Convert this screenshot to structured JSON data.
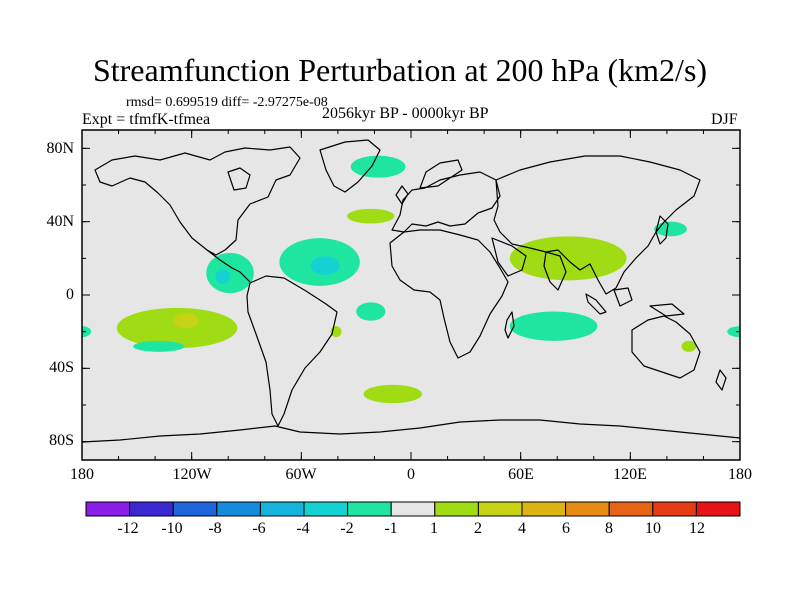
{
  "title": "Streamfunction Perturbation at 200 hPa (km2/s)",
  "stats": {
    "rmsd_text": "rmsd= 0.699519 diff= -2.97275e-08"
  },
  "experiment": "Expt = tfmfK-tfmea",
  "period": "2056kyr BP - 0000kyr BP",
  "season": "DJF",
  "axes": {
    "lat_labels": [
      "80N",
      "40N",
      "0",
      "40S",
      "80S"
    ],
    "lon_labels": [
      "180",
      "120W",
      "60W",
      "0",
      "60E",
      "120E",
      "180"
    ]
  },
  "colorbar": {
    "labels": [
      "-12",
      "-10",
      "-8",
      "-6",
      "-4",
      "-2",
      "-1",
      "1",
      "2",
      "4",
      "6",
      "8",
      "10",
      "12"
    ],
    "colors": [
      "#8a1ee6",
      "#3c28d2",
      "#1e64dc",
      "#148cdc",
      "#14b4dc",
      "#14d2d2",
      "#1ee6a0",
      "#e6e6e6",
      "#a0dc14",
      "#c8d214",
      "#dcb414",
      "#e68c14",
      "#e66414",
      "#e63c14",
      "#e61414"
    ]
  },
  "map_data": {
    "type": "contour_fill_map",
    "field": "streamfunction perturbation",
    "units": "km2/s",
    "level_hPa": 200,
    "lat_range": [
      -90,
      90
    ],
    "lon_range": [
      -180,
      180
    ],
    "background_color": "#e6e6e6",
    "land_outline_color": "#000000",
    "regions": [
      {
        "name": "north-atlantic-high",
        "lon": -18,
        "lat": 70,
        "rx": 15,
        "ry": 6,
        "color": "#1ee6a0"
      },
      {
        "name": "caribbean-low",
        "lon": -50,
        "lat": 18,
        "rx": 22,
        "ry": 13,
        "color": "#1ee6a0"
      },
      {
        "name": "caribbean-low-core",
        "lon": -47,
        "lat": 16,
        "rx": 8,
        "ry": 5,
        "color": "#14d2d2"
      },
      {
        "name": "mexico-low",
        "lon": -99,
        "lat": 12,
        "rx": 13,
        "ry": 11,
        "color": "#1ee6a0"
      },
      {
        "name": "mexico-low-core",
        "lon": -103,
        "lat": 10,
        "rx": 4,
        "ry": 4,
        "color": "#14d2d2"
      },
      {
        "name": "west-africa-high",
        "lon": -22,
        "lat": 43,
        "rx": 13,
        "ry": 4,
        "color": "#a0dc14"
      },
      {
        "name": "asia-high",
        "lon": 86,
        "lat": 20,
        "rx": 32,
        "ry": 12,
        "color": "#a0dc14"
      },
      {
        "name": "japan-low",
        "lon": 142,
        "lat": 36,
        "rx": 9,
        "ry": 4,
        "color": "#1ee6a0"
      },
      {
        "name": "east-pacific-high",
        "lon": -128,
        "lat": -18,
        "rx": 33,
        "ry": 11,
        "color": "#a0dc14"
      },
      {
        "name": "east-pacific-high-core",
        "lon": -123,
        "lat": -14,
        "rx": 7,
        "ry": 4,
        "color": "#c8d214"
      },
      {
        "name": "south-pacific-low",
        "lon": -138,
        "lat": -28,
        "rx": 14,
        "ry": 3,
        "color": "#1ee6a0"
      },
      {
        "name": "south-america-high",
        "lon": -41,
        "lat": -20,
        "rx": 3,
        "ry": 3,
        "color": "#a0dc14"
      },
      {
        "name": "south-atlantic-low",
        "lon": -22,
        "lat": -9,
        "rx": 8,
        "ry": 5,
        "color": "#1ee6a0"
      },
      {
        "name": "southern-ocean-high",
        "lon": -10,
        "lat": -54,
        "rx": 16,
        "ry": 5,
        "color": "#a0dc14"
      },
      {
        "name": "indian-ocean-low",
        "lon": 78,
        "lat": -17,
        "rx": 24,
        "ry": 8,
        "color": "#1ee6a0"
      },
      {
        "name": "australia-high",
        "lon": 152,
        "lat": -28,
        "rx": 4,
        "ry": 3,
        "color": "#a0dc14"
      },
      {
        "name": "dateline-low-east",
        "lon": 180,
        "lat": -20,
        "rx": 7,
        "ry": 3,
        "color": "#1ee6a0"
      },
      {
        "name": "dateline-low-west",
        "lon": -180,
        "lat": -20,
        "rx": 5,
        "ry": 3,
        "color": "#1ee6a0"
      }
    ]
  }
}
